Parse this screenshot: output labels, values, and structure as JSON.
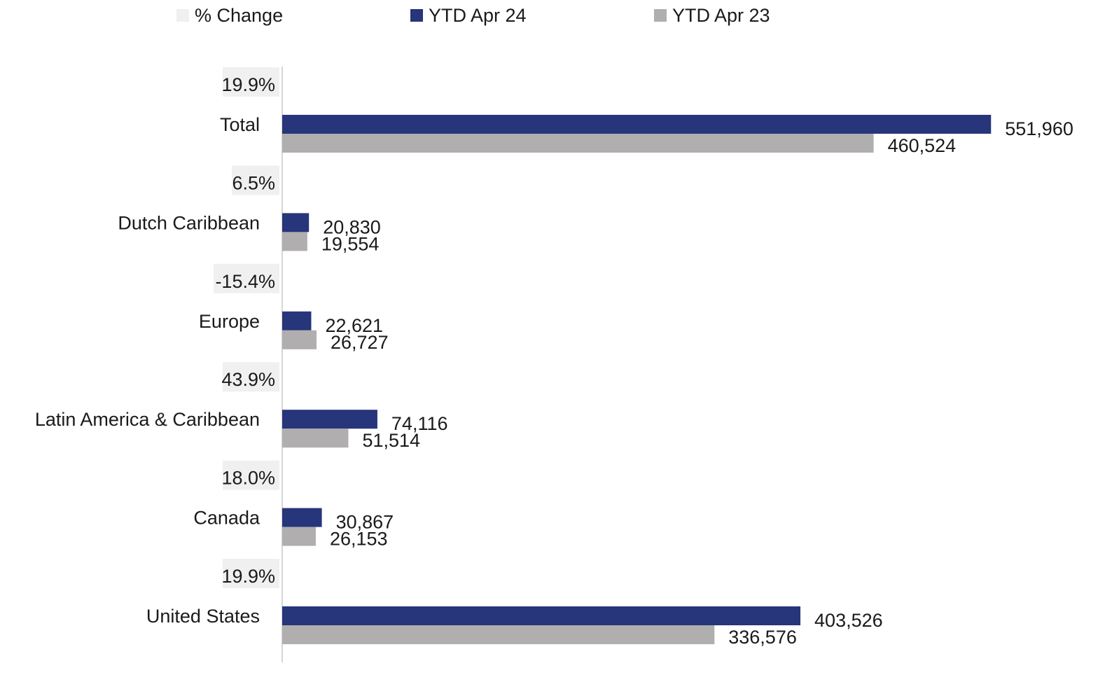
{
  "chart_data": {
    "type": "bar",
    "orientation": "horizontal",
    "categories": [
      "Total",
      "Dutch Caribbean",
      "Europe",
      "Latin America & Caribbean",
      "Canada",
      "United States"
    ],
    "series": [
      {
        "name": "YTD Apr 24",
        "color": "#27357a",
        "values": [
          551960,
          20830,
          22621,
          74116,
          30867,
          403526
        ],
        "labels": [
          "551,960",
          "20,830",
          "22,621",
          "74,116",
          "30,867",
          "403,526"
        ]
      },
      {
        "name": "YTD Apr 23",
        "color": "#b0aeae",
        "values": [
          460524,
          19554,
          26727,
          51514,
          26153,
          336576
        ],
        "labels": [
          "460,524",
          "19,554",
          "26,727",
          "51,514",
          "26,153",
          "336,576"
        ]
      }
    ],
    "pct_change": {
      "name": "% Change",
      "color": "#f0f0f0",
      "labels": [
        "19.9%",
        "6.5%",
        "-15.4%",
        "43.9%",
        "18.0%",
        "19.9%"
      ]
    },
    "xlim": [
      0,
      560000
    ],
    "grid": false,
    "legend_position": "top"
  }
}
